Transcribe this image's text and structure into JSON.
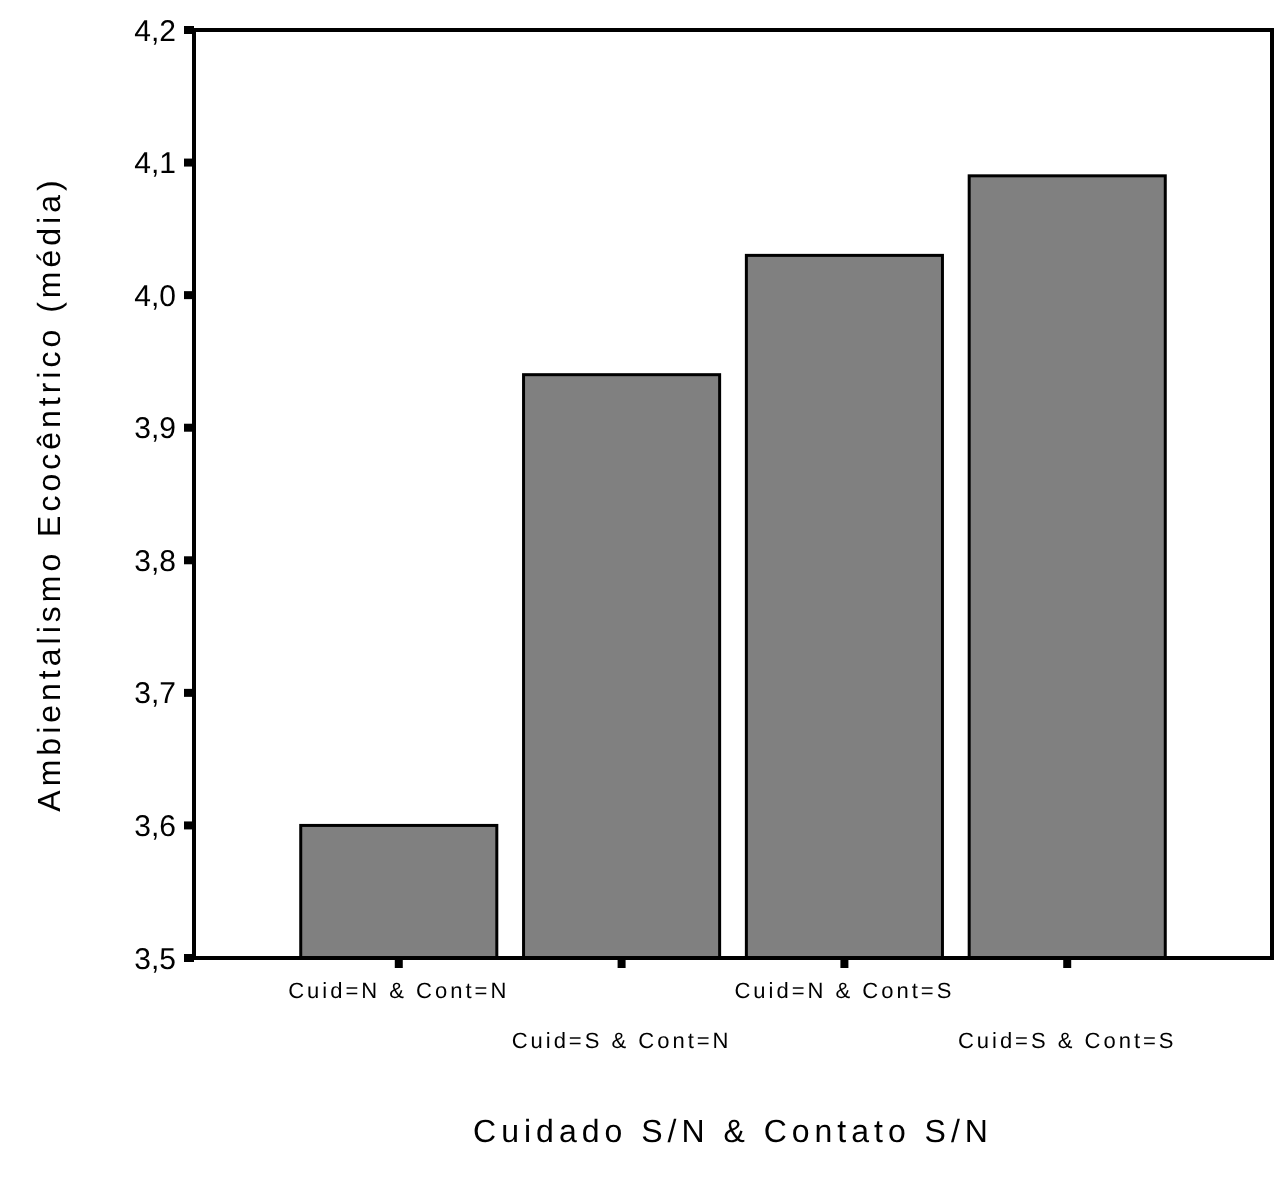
{
  "chart_data": {
    "type": "bar",
    "xlabel": "Cuidado S/N & Contato S/N",
    "ylabel": "Ambientalismo Ecocêntrico (média)",
    "categories": [
      "Cuid=N & Cont=N",
      "Cuid=S & Cont=N",
      "Cuid=N & Cont=S",
      "Cuid=S & Cont=S"
    ],
    "values": [
      3.6,
      3.94,
      4.03,
      4.09
    ],
    "color": "#808080",
    "ylim": [
      3.5,
      4.2
    ],
    "yticks": [
      {
        "value": 3.5,
        "label": "3,5"
      },
      {
        "value": 3.6,
        "label": "3,6"
      },
      {
        "value": 3.7,
        "label": "3,7"
      },
      {
        "value": 3.8,
        "label": "3,8"
      },
      {
        "value": 3.9,
        "label": "3,9"
      },
      {
        "value": 4.0,
        "label": "4,0"
      },
      {
        "value": 4.1,
        "label": "4,1"
      },
      {
        "value": 4.2,
        "label": "4,2"
      }
    ],
    "grid": false
  }
}
